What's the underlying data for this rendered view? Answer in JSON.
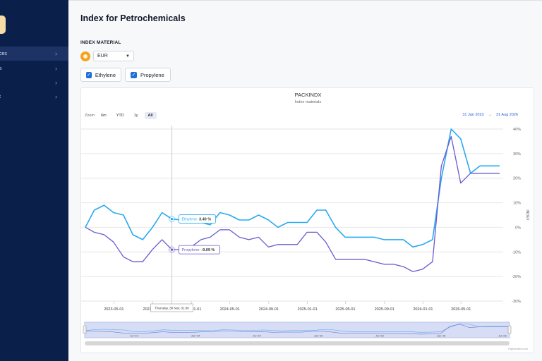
{
  "sidebar": {
    "items": [
      {
        "label": "ces",
        "active": true
      },
      {
        "label": "s",
        "active": false
      },
      {
        "label": "",
        "active": false
      },
      {
        "label": "t",
        "active": false
      }
    ]
  },
  "page": {
    "title": "Index for Petrochemicals",
    "section_label": "INDEX MATERIAL",
    "currency": "EUR"
  },
  "filters": {
    "ethylene_label": "Ethylene",
    "propylene_label": "Propylene",
    "ethylene_checked": true,
    "propylene_checked": true
  },
  "chart_controls": {
    "zoom_label": "Zoom",
    "buttons": [
      "6m",
      "YTD",
      "1y",
      "All"
    ],
    "selected": "All",
    "range_from": "31 Jan 2023",
    "range_arrow": "→",
    "range_to": "31 Aug 2026",
    "credits": "Highcharts.com"
  },
  "colors": {
    "ethylene": "#29a9f0",
    "propylene": "#6a5acd",
    "sidebar": "#0b1f4b",
    "accent": "#1f6fd8"
  },
  "chart_data": {
    "type": "line",
    "title": "PACKINDX",
    "subtitle": "Index materials",
    "ylabel": "INDEX",
    "ylim": [
      -30,
      40
    ],
    "y_ticks": [
      -30,
      -20,
      -10,
      0,
      10,
      20,
      30,
      40
    ],
    "y_tick_suffix": "%",
    "x_ticks": [
      "2023-05-01",
      "2023-09-01",
      "2024-01-01",
      "2024-05-01",
      "2024-09-01",
      "2025-01-01",
      "2025-05-01",
      "2025-09-01",
      "2026-01-01",
      "2026-05-01"
    ],
    "x_dates": [
      "2023-01-31",
      "2023-02-28",
      "2023-03-31",
      "2023-04-30",
      "2023-05-31",
      "2023-06-30",
      "2023-07-31",
      "2023-08-31",
      "2023-09-30",
      "2023-10-31",
      "2023-11-30",
      "2023-12-31",
      "2024-01-31",
      "2024-02-29",
      "2024-03-31",
      "2024-04-30",
      "2024-05-31",
      "2024-06-30",
      "2024-07-31",
      "2024-08-31",
      "2024-09-30",
      "2024-10-31",
      "2024-11-30",
      "2024-12-31",
      "2025-01-31",
      "2025-02-28",
      "2025-03-31",
      "2025-04-30",
      "2025-05-31",
      "2025-06-30",
      "2025-07-31",
      "2025-08-31",
      "2025-09-30",
      "2025-10-31",
      "2025-11-30",
      "2025-12-31",
      "2026-01-31",
      "2026-02-28",
      "2026-03-31",
      "2026-04-30",
      "2026-05-31",
      "2026-06-30",
      "2026-07-31",
      "2026-08-31"
    ],
    "series": [
      {
        "name": "Ethylene",
        "values": [
          0,
          7,
          9,
          6,
          5,
          -3,
          -5,
          0,
          6,
          3.4,
          3,
          2,
          2,
          1,
          6,
          5,
          3,
          3,
          5,
          3,
          0,
          2,
          2,
          2,
          7,
          7,
          0,
          -4,
          -4,
          -4,
          -4,
          -5,
          -5,
          -5,
          -8,
          -7,
          -5,
          20,
          40,
          36,
          22,
          25,
          25,
          25
        ]
      },
      {
        "name": "Propylene",
        "values": [
          0,
          -2,
          -3,
          -6,
          -12,
          -14,
          -14,
          -9,
          -5,
          -9.09,
          -9,
          -8,
          -5,
          -4,
          -1,
          -1,
          -4,
          -5,
          -4,
          -8,
          -7,
          -7,
          -7,
          -2,
          -2,
          -6,
          -13,
          -13,
          -13,
          -13,
          -14,
          -15,
          -15,
          -16,
          -18,
          -17,
          -14,
          25,
          37,
          18,
          22,
          22,
          22,
          22
        ]
      }
    ],
    "tooltips": [
      {
        "series": "Ethylene",
        "text": "Ethylene: ",
        "value": "3.40 %"
      },
      {
        "series": "Propylene",
        "text": "Propylene: ",
        "value": "-9.09 %"
      }
    ],
    "crosshair_label": "Thursday, 30 Nov, 01:00",
    "navigator_ticks": [
      "Jul '23",
      "Jan '24",
      "Jul '24",
      "Jan '25",
      "Jul '25",
      "Jan '26",
      "Jul '26"
    ]
  }
}
